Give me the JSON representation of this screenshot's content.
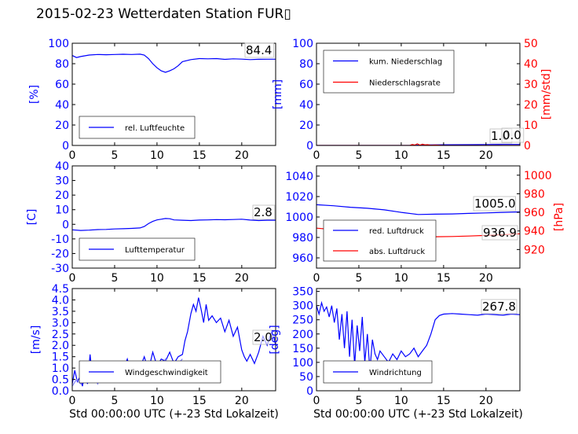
{
  "title": "2015-02-23 Wetterdaten Station FUR▯",
  "colors": {
    "blue": "#0000ff",
    "red": "#ff0000",
    "lightblue": "#7f7fff"
  },
  "chart_data": [
    {
      "type": "line",
      "ylabel": "[%]",
      "xlim": [
        0,
        24
      ],
      "ylim": [
        0,
        100
      ],
      "xticks": [
        0,
        5,
        10,
        15,
        20
      ],
      "yticks": [
        0,
        20,
        40,
        60,
        80,
        100
      ],
      "grid": false,
      "legend_position": "lower-left",
      "annotation": "84.4",
      "series": [
        {
          "name": "rel. Luftfeuchte",
          "color": "#0000ff",
          "x": [
            0,
            0.5,
            1,
            2,
            3,
            4,
            5,
            6,
            7,
            8,
            8.5,
            9,
            9.5,
            10,
            10.5,
            11,
            11.5,
            12,
            12.5,
            13,
            14,
            15,
            16,
            17,
            18,
            19,
            20,
            21,
            22,
            23,
            24
          ],
          "y": [
            88,
            86,
            87,
            88.5,
            89,
            88.8,
            89,
            89.2,
            89,
            89.3,
            88.5,
            85,
            80,
            76,
            73,
            71.5,
            73,
            75,
            78,
            82,
            84,
            85,
            84.8,
            85,
            84.2,
            84.8,
            84.5,
            84,
            84.3,
            84.4,
            84.4
          ]
        }
      ]
    },
    {
      "type": "line",
      "ylabel": "[mm]",
      "ylabel_right": "[mm/std]",
      "xlim": [
        0,
        24
      ],
      "ylim": [
        0,
        100
      ],
      "ylim_right": [
        0,
        50
      ],
      "xticks": [
        0,
        5,
        10,
        15,
        20
      ],
      "yticks": [
        0,
        20,
        40,
        60,
        80,
        100
      ],
      "yticks_right": [
        0,
        10,
        20,
        30,
        40,
        50
      ],
      "grid": false,
      "legend_position": "upper-left",
      "annotations": [
        "1.0",
        "0.0"
      ],
      "series": [
        {
          "name": "kum. Niederschlag",
          "axis": "left",
          "color": "#0000ff",
          "x": [
            0,
            6,
            10,
            11.5,
            12,
            13,
            15,
            18,
            20,
            22,
            24
          ],
          "y": [
            0,
            0,
            0,
            0.1,
            0.3,
            0.5,
            0.7,
            0.8,
            0.9,
            1.0,
            1.0
          ]
        },
        {
          "name": "Niederschlagsrate",
          "axis": "right",
          "color": "#ff0000",
          "x": [
            0,
            11,
            11.3,
            11.6,
            11.9,
            12.2,
            12.5,
            12.8,
            13.1,
            13.5,
            14,
            15,
            24
          ],
          "y": [
            0,
            0,
            0.5,
            0.2,
            0.8,
            0.1,
            0.6,
            0.3,
            0.4,
            0.1,
            0.2,
            0,
            0
          ]
        }
      ]
    },
    {
      "type": "line",
      "ylabel": "[C]",
      "xlim": [
        0,
        24
      ],
      "ylim": [
        -30,
        40
      ],
      "xticks": [
        0,
        5,
        10,
        15,
        20
      ],
      "yticks": [
        -30,
        -20,
        -10,
        0,
        10,
        20,
        30,
        40
      ],
      "grid": false,
      "legend_position": "lower-left",
      "annotation": "2.8",
      "series": [
        {
          "name": "Lufttemperatur",
          "color": "#0000ff",
          "x": [
            0,
            1,
            2,
            3,
            4,
            5,
            6,
            7,
            8,
            8.5,
            9,
            9.5,
            10,
            10.5,
            11,
            11.5,
            12,
            13,
            14,
            15,
            16,
            17,
            18,
            19,
            20,
            21,
            22,
            23,
            24
          ],
          "y": [
            -3.8,
            -4.2,
            -4,
            -3.6,
            -3.5,
            -3.2,
            -3,
            -2.8,
            -2.5,
            -1.5,
            0.5,
            2,
            3,
            3.5,
            4,
            3.8,
            3,
            2.8,
            2.6,
            2.9,
            3,
            3.2,
            3.1,
            3.3,
            3.5,
            2.9,
            2.6,
            2.8,
            2.8
          ]
        }
      ]
    },
    {
      "type": "line",
      "ylabel_right": "[hPa]",
      "xlim": [
        0,
        24
      ],
      "ylim": [
        950,
        1050
      ],
      "ylim_right": [
        900,
        1010
      ],
      "xticks": [
        0,
        5,
        10,
        15,
        20
      ],
      "yticks": [
        960,
        980,
        1000,
        1020,
        1040
      ],
      "yticks_right": [
        920,
        940,
        960,
        980,
        1000
      ],
      "grid": false,
      "legend_position": "lower-left",
      "annotations": [
        "1005.0",
        "936.9"
      ],
      "series": [
        {
          "name": "red. Luftdruck",
          "axis": "left",
          "color": "#0000ff",
          "x": [
            0,
            2,
            4,
            6,
            8,
            10,
            12,
            14,
            16,
            18,
            20,
            22,
            24
          ],
          "y": [
            1012,
            1011,
            1009.5,
            1008.5,
            1007,
            1004.5,
            1002.5,
            1002.8,
            1003,
            1003.5,
            1004,
            1004.5,
            1005
          ]
        },
        {
          "name": "abs. Luftdruck",
          "axis": "right",
          "color": "#ff0000",
          "x": [
            0,
            2,
            4,
            6,
            8,
            10,
            12,
            14,
            16,
            18,
            20,
            22,
            24
          ],
          "y": [
            943,
            941.5,
            940,
            938.5,
            937.5,
            935,
            933.5,
            933.8,
            934,
            934.5,
            935.2,
            936,
            936.9
          ]
        }
      ]
    },
    {
      "type": "line",
      "ylabel": "[m/s]",
      "xlabel": "Std 00:00:00 UTC (+-23 Std Lokalzeit)",
      "xlim": [
        0,
        24
      ],
      "ylim": [
        0,
        4.5
      ],
      "xticks": [
        0,
        5,
        10,
        15,
        20
      ],
      "yticks": [
        0.0,
        0.5,
        1.0,
        1.5,
        2.0,
        2.5,
        3.0,
        3.5,
        4.0,
        4.5
      ],
      "ytick_labels": [
        "0.0",
        "0.5",
        "1.0",
        "1.5",
        "2.0",
        "2.5",
        "3.0",
        "3.5",
        "4.0",
        "4.5"
      ],
      "grid": false,
      "legend_position": "lower-left",
      "annotation": "2.0",
      "series": [
        {
          "name": "Windgeschwindigkeit",
          "color": "#0000ff",
          "x": [
            0,
            0.3,
            0.6,
            0.9,
            1.2,
            1.5,
            1.8,
            2.1,
            2.4,
            2.7,
            3,
            3.5,
            4,
            4.5,
            5,
            5.5,
            6,
            6.5,
            7,
            7.5,
            8,
            8.5,
            9,
            9.5,
            10,
            10.5,
            11,
            11.5,
            12,
            12.5,
            13,
            13.3,
            13.6,
            14,
            14.3,
            14.6,
            14.9,
            15.2,
            15.5,
            15.8,
            16.1,
            16.5,
            17,
            17.5,
            18,
            18.5,
            19,
            19.5,
            20,
            20.3,
            20.6,
            21,
            21.5,
            22,
            22.5,
            23,
            23.5,
            24
          ],
          "y": [
            0.3,
            0.9,
            0.4,
            0.6,
            0.2,
            0.8,
            0.3,
            1.6,
            0.5,
            1.0,
            0.4,
            0.9,
            0.6,
            1.2,
            0.8,
            1.0,
            0.9,
            1.4,
            0.7,
            1.2,
            1.0,
            1.5,
            0.9,
            1.7,
            1.1,
            1.4,
            1.3,
            1.7,
            1.2,
            1.5,
            1.6,
            2.2,
            2.6,
            3.4,
            3.8,
            3.5,
            4.1,
            3.6,
            3.0,
            3.8,
            3.1,
            3.3,
            3.0,
            3.2,
            2.6,
            3.1,
            2.4,
            2.8,
            1.8,
            1.5,
            1.3,
            1.6,
            1.2,
            1.7,
            2.4,
            2.0,
            2.6,
            2.0
          ]
        },
        {
          "name": "",
          "color": "#7f7fff",
          "x": [
            0,
            0.5,
            1,
            1.5,
            2,
            2.5,
            3,
            3.5,
            4,
            4.5,
            5,
            5.5,
            6,
            6.5,
            7,
            7.5,
            8,
            8.5,
            9,
            9.5,
            10,
            10.5,
            11,
            11.5,
            12,
            12.5,
            13
          ],
          "y": [
            0.2,
            0.5,
            0.3,
            0.6,
            0.4,
            0.7,
            0.3,
            0.8,
            0.5,
            0.9,
            0.6,
            0.7,
            1.0,
            0.6,
            1.1,
            0.8,
            1.2,
            0.9,
            1.3,
            1.0,
            1.2,
            1.1,
            1.4,
            1.0,
            1.3,
            1.2,
            1.4
          ]
        }
      ]
    },
    {
      "type": "line",
      "ylabel": "[deg]",
      "xlabel": "Std 00:00:00 UTC (+-23 Std Lokalzeit)",
      "xlim": [
        0,
        24
      ],
      "ylim": [
        0,
        360
      ],
      "xticks": [
        0,
        5,
        10,
        15,
        20
      ],
      "yticks": [
        0,
        50,
        100,
        150,
        200,
        250,
        300,
        350
      ],
      "grid": false,
      "legend_position": "lower-left",
      "annotation": "267.8",
      "series": [
        {
          "name": "Windrichtung",
          "color": "#0000ff",
          "x": [
            0,
            0.3,
            0.6,
            0.9,
            1.2,
            1.5,
            1.8,
            2.1,
            2.4,
            2.7,
            3,
            3.3,
            3.6,
            3.9,
            4.2,
            4.5,
            4.8,
            5.1,
            5.4,
            5.7,
            6,
            6.3,
            6.6,
            6.9,
            7.2,
            7.5,
            8,
            8.5,
            9,
            9.5,
            10,
            10.5,
            11,
            11.5,
            12,
            12.5,
            13,
            13.5,
            14,
            14.5,
            15,
            16,
            17,
            18,
            19,
            20,
            21,
            22,
            23,
            24
          ],
          "y": [
            300,
            270,
            310,
            280,
            295,
            260,
            300,
            240,
            290,
            180,
            270,
            150,
            280,
            120,
            250,
            90,
            230,
            140,
            260,
            100,
            200,
            70,
            180,
            130,
            110,
            140,
            120,
            100,
            130,
            110,
            140,
            120,
            130,
            150,
            120,
            140,
            160,
            200,
            250,
            265,
            270,
            272,
            270,
            268,
            266,
            270,
            268,
            266,
            270,
            268
          ]
        }
      ]
    }
  ]
}
